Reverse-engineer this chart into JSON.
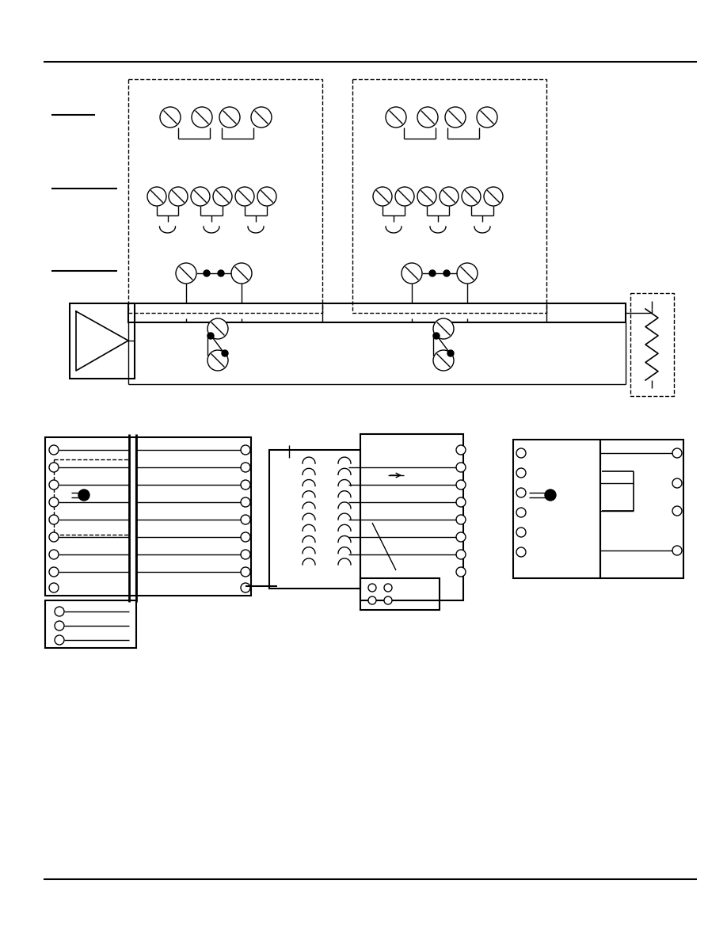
{
  "bg_color": "#ffffff",
  "fig_width": 9.18,
  "fig_height": 11.88
}
